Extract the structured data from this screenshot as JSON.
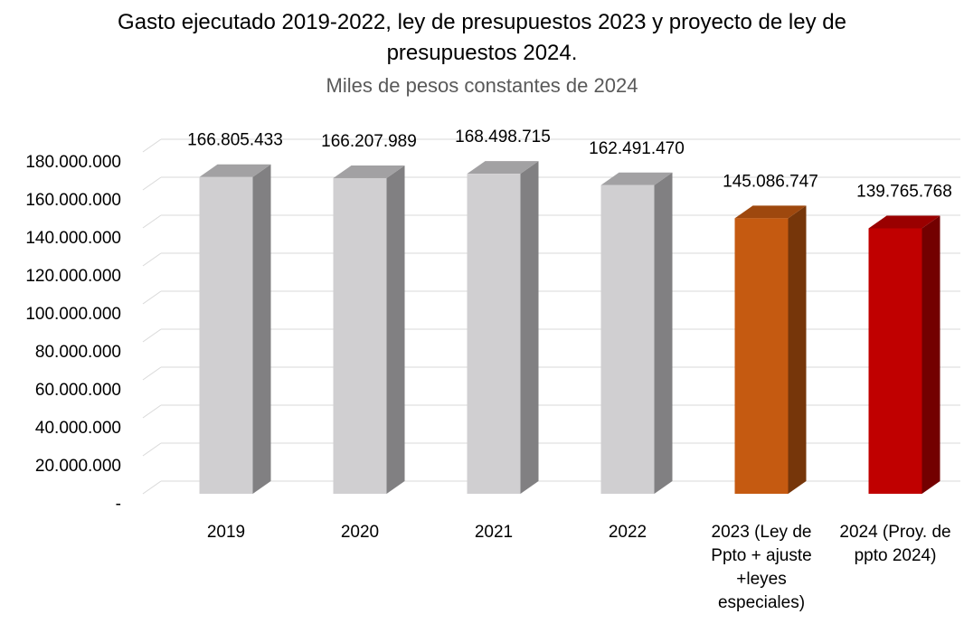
{
  "chart_data": {
    "type": "bar3d",
    "title": "Gasto ejecutado 2019-2022, ley de presupuestos 2023 y proyecto de ley de presupuestos 2024.",
    "subtitle": "Miles de pesos constantes de 2024",
    "categories": [
      "2019",
      "2020",
      "2021",
      "2022",
      "2023 (Ley de Ppto + ajuste +leyes especiales)",
      "2024 (Proy. de ppto 2024)"
    ],
    "values": [
      166805433,
      166207989,
      168498715,
      162491470,
      145086747,
      139765768
    ],
    "value_labels": [
      "166.805.433",
      "166.207.989",
      "168.498.715",
      "162.491.470",
      "145.086.747",
      "139.765.768"
    ],
    "colors": [
      "#d0cfd1",
      "#d0cfd1",
      "#d0cfd1",
      "#d0cfd1",
      "#c55a11",
      "#c00000"
    ],
    "ylim": [
      0,
      180000000
    ],
    "yticks": [
      {
        "value": 0,
        "label": "-"
      },
      {
        "value": 20000000,
        "label": "20.000.000"
      },
      {
        "value": 40000000,
        "label": "40.000.000"
      },
      {
        "value": 60000000,
        "label": "60.000.000"
      },
      {
        "value": 80000000,
        "label": "80.000.000"
      },
      {
        "value": 100000000,
        "label": "100.000.000"
      },
      {
        "value": 120000000,
        "label": "120.000.000"
      },
      {
        "value": 140000000,
        "label": "140.000.000"
      },
      {
        "value": 160000000,
        "label": "160.000.000"
      },
      {
        "value": 180000000,
        "label": "180.000.000"
      }
    ],
    "grid": true
  }
}
